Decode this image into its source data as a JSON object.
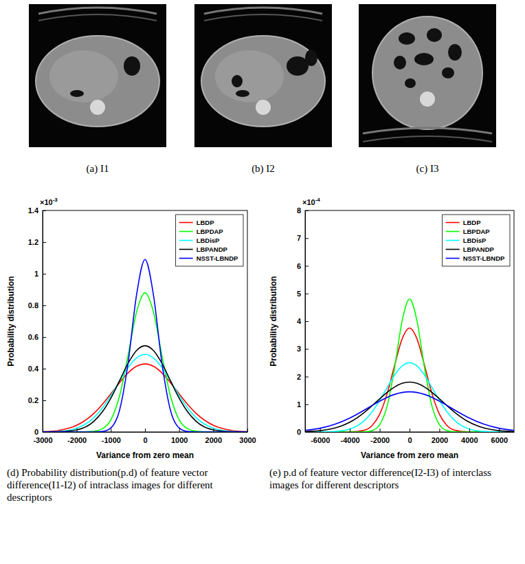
{
  "images": [
    {
      "caption": "(a) I1"
    },
    {
      "caption": "(b) I2"
    },
    {
      "caption": "(c) I3"
    }
  ],
  "chart_data": [
    {
      "type": "line",
      "caption": "(d) Probability distribution(p.d) of feature vector difference(I1-I2) of intraclass images for different descriptors",
      "x_label": "Variance from zero mean",
      "y_label": "Probability distribution",
      "multiplier": {
        "base": "×10",
        "exponent": "-3"
      },
      "x": [
        -3000,
        -2500,
        -2000,
        -1500,
        -1250,
        -1000,
        -750,
        -500,
        -250,
        0,
        250,
        500,
        750,
        1000,
        1250,
        1500,
        2000,
        2500,
        3000
      ],
      "series": [
        {
          "name": "LBDP",
          "color": "#ff0000",
          "values": [
            0.002,
            0.011,
            0.042,
            0.117,
            0.174,
            0.241,
            0.31,
            0.372,
            0.415,
            0.43,
            0.415,
            0.372,
            0.31,
            0.241,
            0.174,
            0.117,
            0.042,
            0.011,
            0.002
          ]
        },
        {
          "name": "LBPDAP",
          "color": "#00ff00",
          "values": [
            0,
            0,
            0,
            0.004,
            0.02,
            0.077,
            0.224,
            0.479,
            0.756,
            0.88,
            0.756,
            0.479,
            0.224,
            0.077,
            0.02,
            0.004,
            0,
            0,
            0
          ]
        },
        {
          "name": "LBDisP",
          "color": "#00ffff",
          "values": [
            0.001,
            0.004,
            0.024,
            0.09,
            0.151,
            0.23,
            0.32,
            0.406,
            0.467,
            0.49,
            0.467,
            0.406,
            0.32,
            0.23,
            0.151,
            0.09,
            0.024,
            0.004,
            0.001
          ]
        },
        {
          "name": "LBPANDP",
          "color": "#000000",
          "values": [
            0,
            0.002,
            0.013,
            0.067,
            0.127,
            0.214,
            0.322,
            0.432,
            0.514,
            0.545,
            0.514,
            0.432,
            0.322,
            0.214,
            0.127,
            0.067,
            0.013,
            0.002,
            0
          ]
        },
        {
          "name": "NSST-LBNDP",
          "color": "#0000ff",
          "values": [
            0,
            0,
            0,
            0,
            0.003,
            0.026,
            0.134,
            0.429,
            0.863,
            1.09,
            0.863,
            0.429,
            0.134,
            0.026,
            0.003,
            0,
            0,
            0,
            0
          ]
        }
      ],
      "xlim": [
        -3000,
        3000
      ],
      "xticks": [
        -3000,
        -2000,
        -1000,
        0,
        1000,
        2000,
        3000
      ],
      "ylim": [
        0,
        1.4
      ],
      "yticks": [
        0,
        0.2,
        0.4,
        0.6,
        0.8,
        1,
        1.2,
        1.4
      ],
      "legend": "upper right",
      "grid": false
    },
    {
      "type": "line",
      "caption": "(e) p.d of feature vector difference(I2-I3) of interclass images for different descriptors",
      "x_label": "Variance from zero mean",
      "y_label": "Probability distribution",
      "multiplier": {
        "base": "×10",
        "exponent": "-4"
      },
      "x": [
        -7000,
        -6000,
        -5000,
        -4000,
        -3000,
        -2500,
        -2000,
        -1500,
        -1000,
        -500,
        0,
        500,
        1000,
        1500,
        2000,
        2500,
        3000,
        4000,
        5000,
        6000,
        7000
      ],
      "series": [
        {
          "name": "LBDP",
          "color": "#ff0000",
          "values": [
            0,
            0,
            0,
            0.003,
            0.07,
            0.237,
            0.641,
            1.388,
            2.411,
            3.357,
            3.75,
            3.357,
            2.411,
            1.388,
            0.641,
            0.237,
            0.07,
            0.003,
            0,
            0,
            0
          ]
        },
        {
          "name": "LBPDAP",
          "color": "#00ff00",
          "values": [
            0,
            0,
            0,
            0,
            0.007,
            0.052,
            0.265,
            0.941,
            2.327,
            4.005,
            4.8,
            4.005,
            2.327,
            0.941,
            0.265,
            0.052,
            0.007,
            0,
            0,
            0,
            0
          ]
        },
        {
          "name": "LBDisP",
          "color": "#00ffff",
          "values": [
            0,
            0.002,
            0.018,
            0.108,
            0.427,
            0.733,
            1.14,
            1.607,
            2.054,
            2.38,
            2.5,
            2.38,
            2.054,
            1.607,
            1.14,
            0.733,
            0.427,
            0.108,
            0.018,
            0.002,
            0
          ]
        },
        {
          "name": "LBPANDP",
          "color": "#000000",
          "values": [
            0.012,
            0.046,
            0.141,
            0.353,
            0.72,
            0.952,
            1.198,
            1.431,
            1.625,
            1.755,
            1.8,
            1.755,
            1.625,
            1.431,
            1.198,
            0.952,
            0.72,
            0.353,
            0.141,
            0.046,
            0.012
          ]
        },
        {
          "name": "NSST-LBNDP",
          "color": "#0000ff",
          "values": [
            0.057,
            0.134,
            0.278,
            0.504,
            0.8,
            0.96,
            1.113,
            1.25,
            1.357,
            1.426,
            1.45,
            1.426,
            1.357,
            1.25,
            1.113,
            0.96,
            0.8,
            0.504,
            0.278,
            0.134,
            0.057
          ]
        }
      ],
      "xlim": [
        -7000,
        7000
      ],
      "xticks": [
        -6000,
        -4000,
        -2000,
        0,
        2000,
        4000,
        6000
      ],
      "ylim": [
        0,
        8
      ],
      "yticks": [
        0,
        1,
        2,
        3,
        4,
        5,
        6,
        7,
        8
      ],
      "legend": "upper right",
      "grid": false
    }
  ]
}
